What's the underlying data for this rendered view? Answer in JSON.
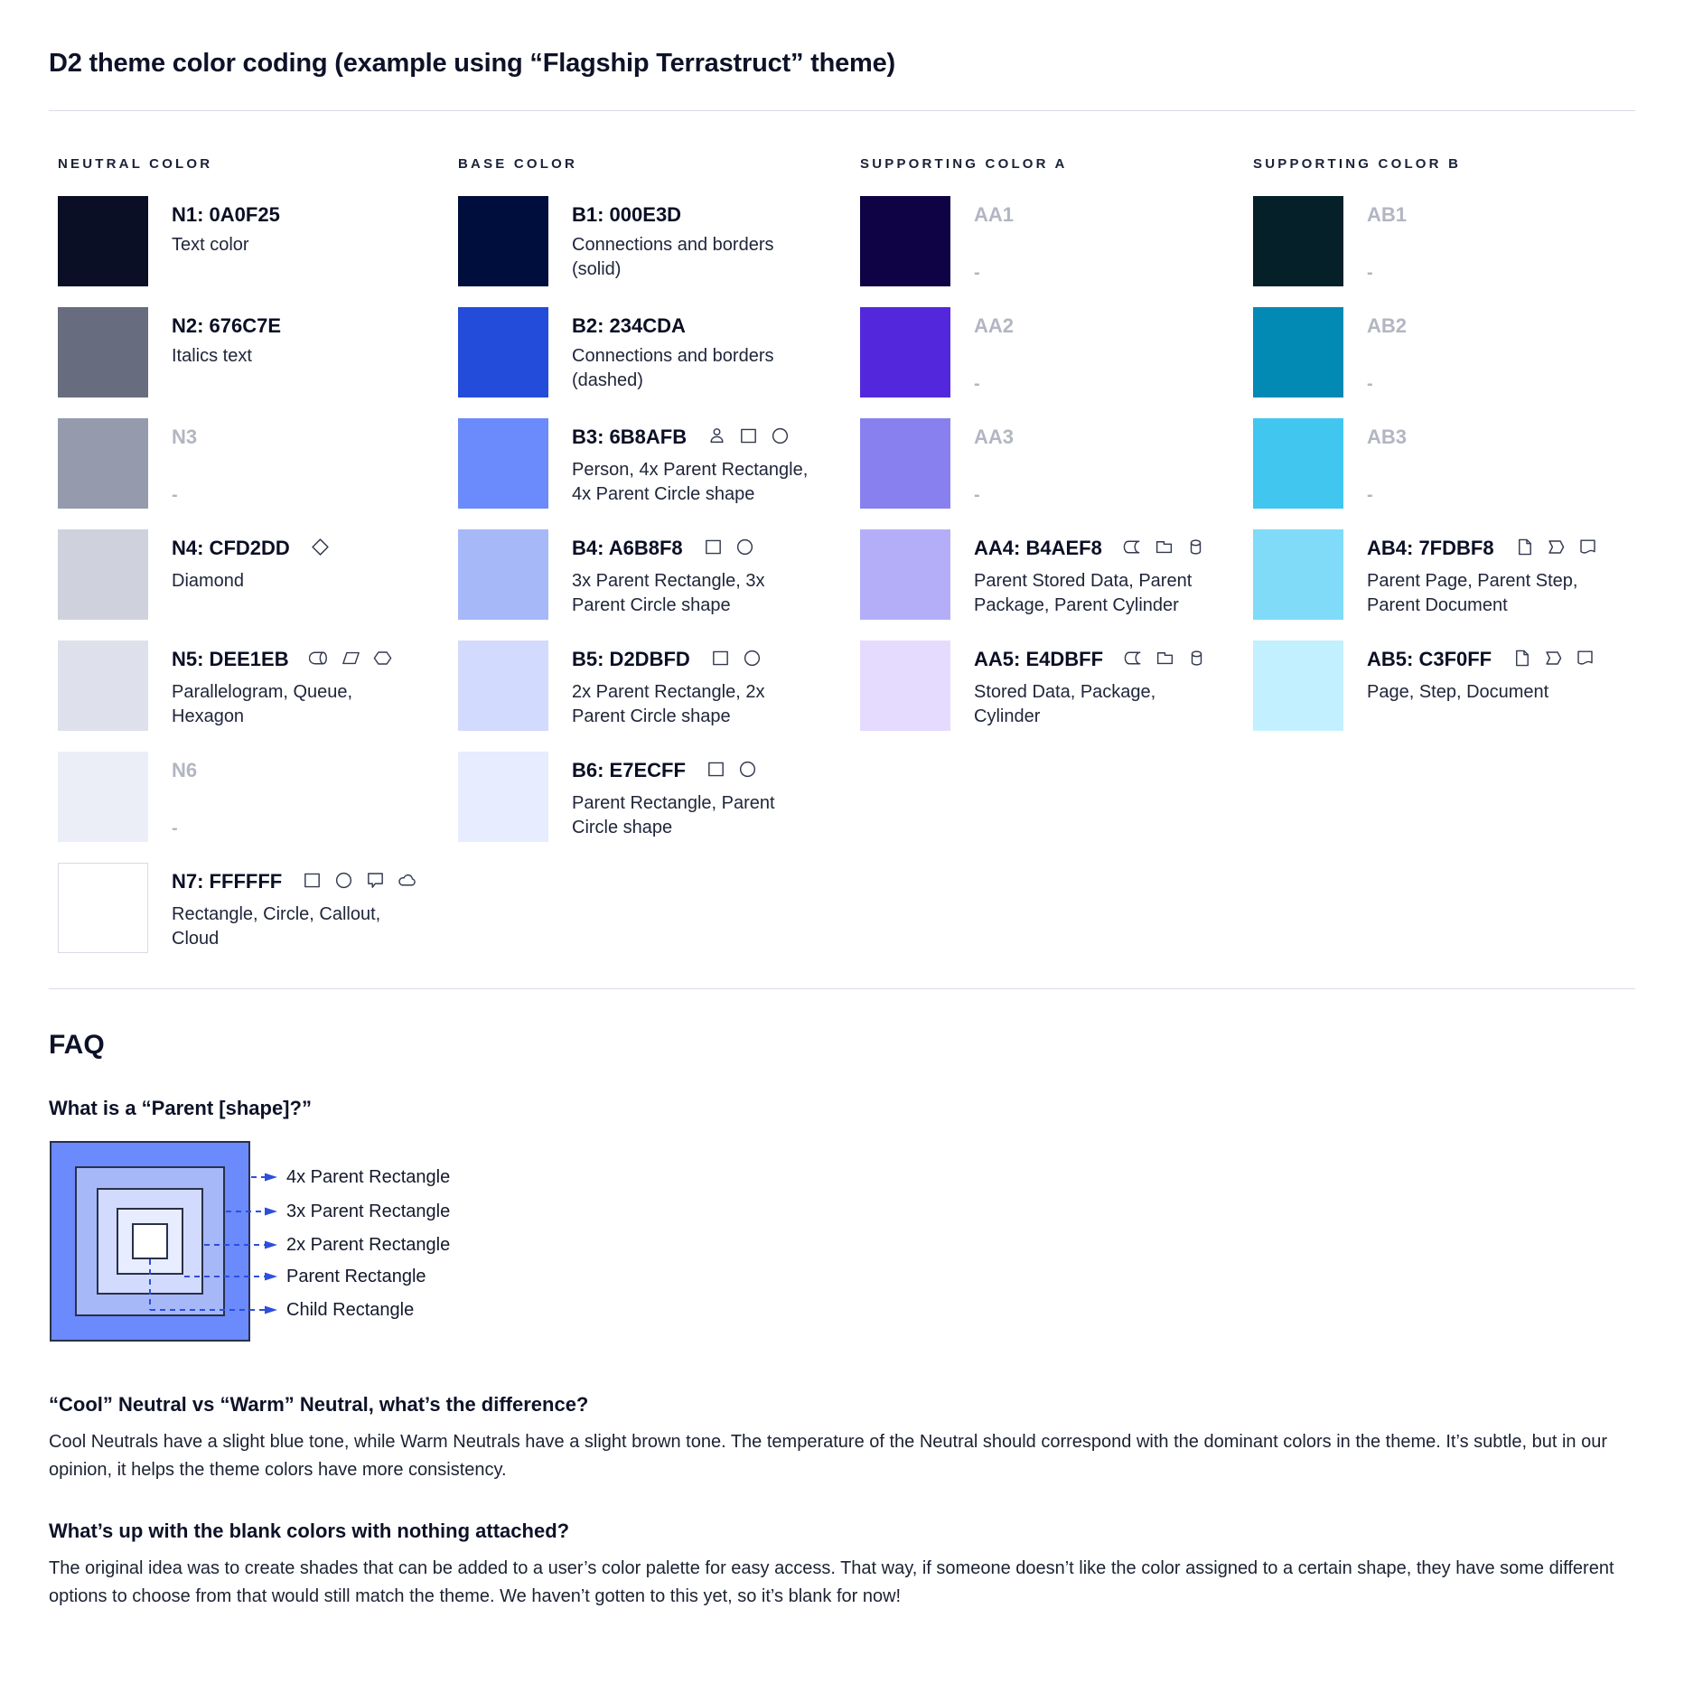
{
  "page": {
    "title": "D2 theme color coding (example using “Flagship Terrastruct” theme)"
  },
  "palette": {
    "columns": [
      {
        "header": "NEUTRAL COLOR",
        "rows": [
          {
            "label": "N1: 0A0F25",
            "desc": "Text color",
            "swatch": "#0A0F25",
            "muted": false,
            "bordered": false,
            "icons": []
          },
          {
            "label": "N2: 676C7E",
            "desc": "Italics text",
            "swatch": "#676C7E",
            "muted": false,
            "bordered": false,
            "icons": []
          },
          {
            "label": "N3",
            "desc": "-",
            "swatch": "#959BAD",
            "muted": true,
            "bordered": false,
            "icons": []
          },
          {
            "label": "N4: CFD2DD",
            "desc": "Diamond",
            "swatch": "#CFD2DD",
            "muted": false,
            "bordered": false,
            "icons": [
              "diamond-icon"
            ]
          },
          {
            "label": "N5: DEE1EB",
            "desc": "Parallelogram, Queue, Hexagon",
            "swatch": "#DEE1EB",
            "muted": false,
            "bordered": false,
            "icons": [
              "queue-icon",
              "parallelogram-icon",
              "hexagon-icon"
            ]
          },
          {
            "label": "N6",
            "desc": "-",
            "swatch": "#EBEEF6",
            "muted": true,
            "bordered": false,
            "icons": []
          },
          {
            "label": "N7: FFFFFF",
            "desc": "Rectangle, Circle, Callout, Cloud",
            "swatch": "#FFFFFF",
            "muted": false,
            "bordered": true,
            "icons": [
              "rectangle-icon",
              "circle-icon",
              "callout-icon",
              "cloud-icon"
            ]
          }
        ]
      },
      {
        "header": "BASE COLOR",
        "rows": [
          {
            "label": "B1: 000E3D",
            "desc": "Connections and borders (solid)",
            "swatch": "#000E3D",
            "muted": false,
            "bordered": false,
            "icons": []
          },
          {
            "label": "B2: 234CDA",
            "desc": "Connections and borders (dashed)",
            "swatch": "#234CDA",
            "muted": false,
            "bordered": false,
            "icons": []
          },
          {
            "label": "B3: 6B8AFB",
            "desc": "Person, 4x Parent Rectangle, 4x Parent Circle shape",
            "swatch": "#6B8AFB",
            "muted": false,
            "bordered": false,
            "icons": [
              "person-icon",
              "rectangle-icon",
              "circle-icon"
            ]
          },
          {
            "label": "B4: A6B8F8",
            "desc": "3x Parent Rectangle, 3x Parent Circle shape",
            "swatch": "#A6B8F8",
            "muted": false,
            "bordered": false,
            "icons": [
              "rectangle-icon",
              "circle-icon"
            ]
          },
          {
            "label": "B5: D2DBFD",
            "desc": "2x Parent Rectangle, 2x Parent Circle shape",
            "swatch": "#D2DBFD",
            "muted": false,
            "bordered": false,
            "icons": [
              "rectangle-icon",
              "circle-icon"
            ]
          },
          {
            "label": "B6: E7ECFF",
            "desc": "Parent Rectangle, Parent Circle shape",
            "swatch": "#E7ECFF",
            "muted": false,
            "bordered": false,
            "icons": [
              "rectangle-icon",
              "circle-icon"
            ]
          }
        ]
      },
      {
        "header": "SUPPORTING COLOR A",
        "rows": [
          {
            "label": "AA1",
            "desc": "-",
            "swatch": "#0F0345",
            "muted": true,
            "bordered": false,
            "icons": []
          },
          {
            "label": "AA2",
            "desc": "-",
            "swatch": "#5328DC",
            "muted": true,
            "bordered": false,
            "icons": []
          },
          {
            "label": "AA3",
            "desc": "-",
            "swatch": "#8880EE",
            "muted": true,
            "bordered": false,
            "icons": []
          },
          {
            "label": "AA4: B4AEF8",
            "desc": "Parent Stored Data, Parent Package,  Parent Cylinder",
            "swatch": "#B4AEF8",
            "muted": false,
            "bordered": false,
            "icons": [
              "stored-data-icon",
              "package-icon",
              "cylinder-icon"
            ]
          },
          {
            "label": "AA5: E4DBFF",
            "desc": "Stored Data, Package, Cylinder",
            "swatch": "#E4DBFF",
            "muted": false,
            "bordered": false,
            "icons": [
              "stored-data-icon",
              "package-icon",
              "cylinder-icon"
            ]
          }
        ]
      },
      {
        "header": "SUPPORTING COLOR B",
        "rows": [
          {
            "label": "AB1",
            "desc": "-",
            "swatch": "#052028",
            "muted": true,
            "bordered": false,
            "icons": []
          },
          {
            "label": "AB2",
            "desc": "-",
            "swatch": "#0289B4",
            "muted": true,
            "bordered": false,
            "icons": []
          },
          {
            "label": "AB3",
            "desc": "-",
            "swatch": "#41C6EF",
            "muted": true,
            "bordered": false,
            "icons": []
          },
          {
            "label": "AB4: 7FDBF8",
            "desc": "Parent Page, Parent Step, Parent Document",
            "swatch": "#7FDBF8",
            "muted": false,
            "bordered": false,
            "icons": [
              "page-icon",
              "step-icon",
              "document-icon"
            ]
          },
          {
            "label": "AB5: C3F0FF",
            "desc": "Page, Step, Document",
            "swatch": "#C3F0FF",
            "muted": false,
            "bordered": false,
            "icons": [
              "page-icon",
              "step-icon",
              "document-icon"
            ]
          }
        ]
      }
    ]
  },
  "faq": {
    "heading": "FAQ",
    "q1": "What is a “Parent [shape]?”",
    "diagram": {
      "labels": [
        "4x Parent Rectangle",
        "3x Parent Rectangle",
        "2x Parent Rectangle",
        "Parent Rectangle",
        "Child Rectangle"
      ],
      "fills": [
        "#6B8AFB",
        "#A6B8F8",
        "#D2DBFD",
        "#E7ECFF",
        "#FFFFFF"
      ],
      "border_color": "#28304A",
      "accent": "#2D4FDD"
    },
    "q2": "“Cool” Neutral vs “Warm” Neutral, what’s the difference?",
    "a2": "Cool Neutrals have a slight blue tone, while Warm Neutrals have a slight brown tone. The temperature of the Neutral should correspond with the dominant colors in the theme. It’s subtle, but in our opinion, it helps the theme colors have more consistency.",
    "q3": "What’s up with the blank colors with nothing attached?",
    "a3": "The original idea was to create shades that can be added to a user’s color palette for easy access. That way, if someone doesn’t like the color assigned to a certain shape, they have some different options to choose from that would still match the theme. We haven’t gotten to this yet, so it’s blank for now!"
  }
}
